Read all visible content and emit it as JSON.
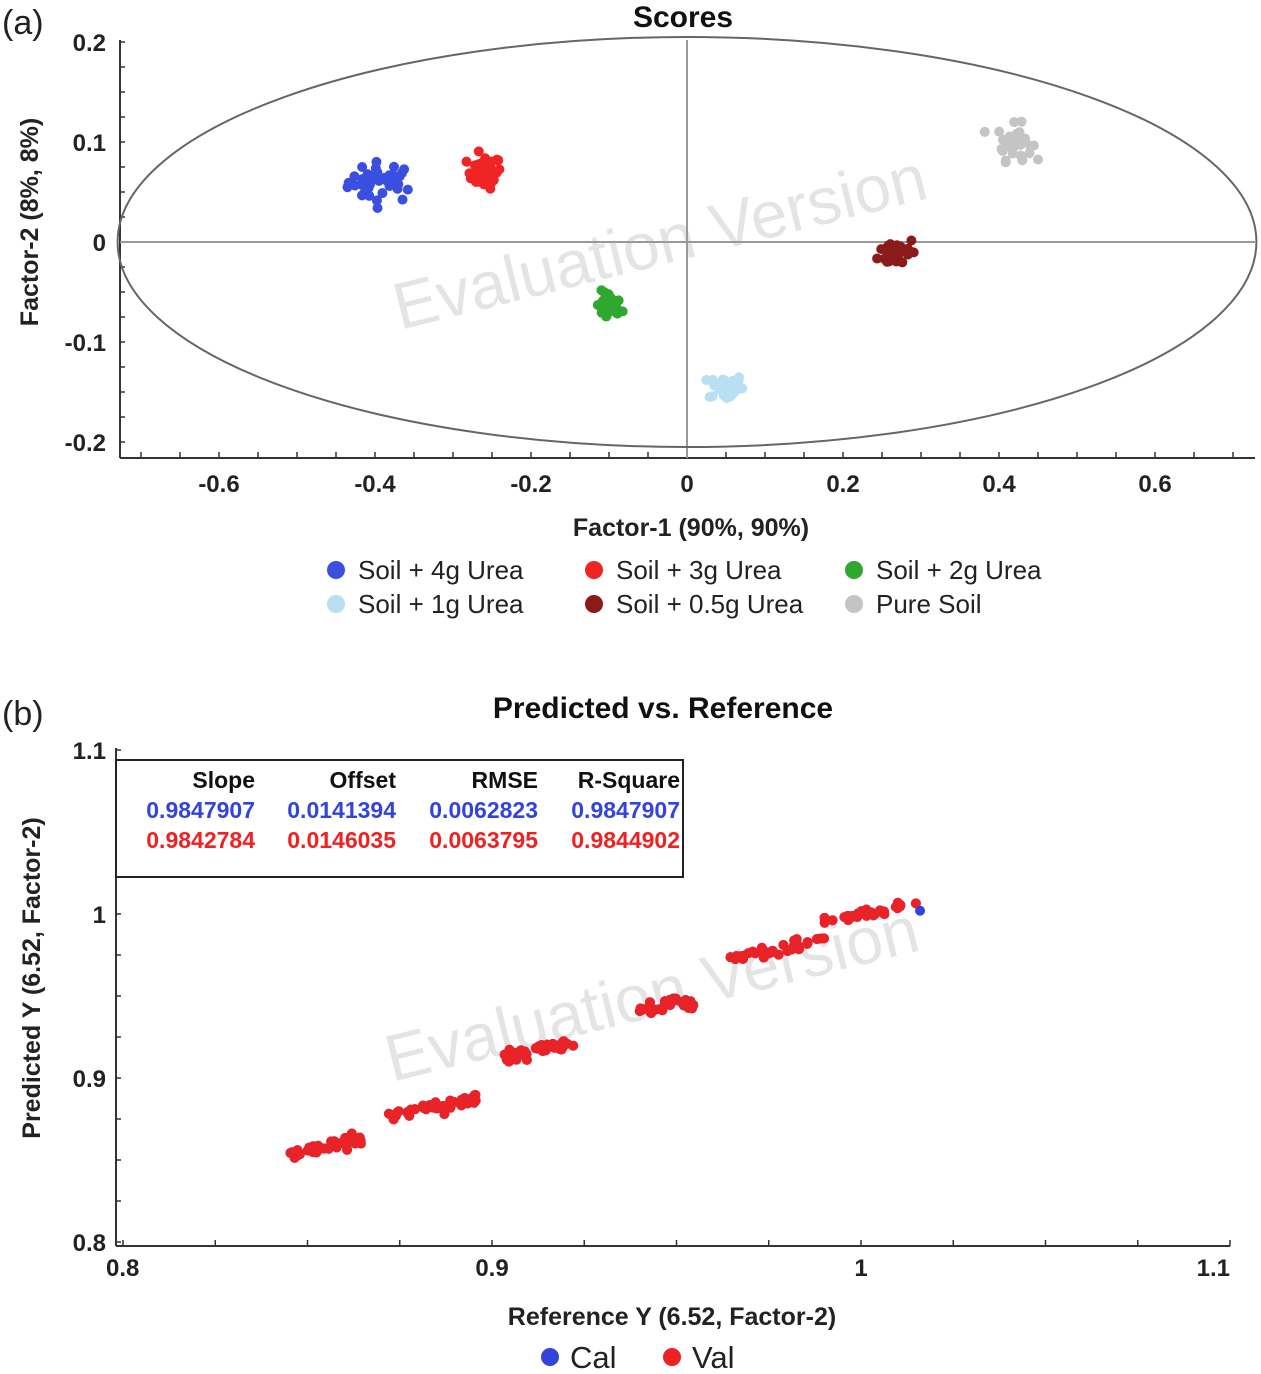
{
  "panel_a": {
    "label": "(a)",
    "watermark": "Evaluation Version"
  },
  "panel_b": {
    "label": "(b)",
    "watermark": "Evaluation Version",
    "stats": {
      "headers": [
        "Slope",
        "Offset",
        "RMSE",
        "R-Square"
      ],
      "rows": [
        {
          "color": "#3344dd",
          "values": [
            "0.9847907",
            "0.0141394",
            "0.0062823",
            "0.9847907"
          ]
        },
        {
          "color": "#ee2222",
          "values": [
            "0.9842784",
            "0.0146035",
            "0.0063795",
            "0.9844902"
          ]
        }
      ]
    }
  },
  "chart_data": [
    {
      "type": "scatter",
      "title": "Scores",
      "xlabel": "Factor-1 (90%, 90%)",
      "ylabel": "Factor-2 (8%, 8%)",
      "xlim": [
        -0.73,
        0.73
      ],
      "ylim": [
        -0.22,
        0.22
      ],
      "xticks": [
        "-0.6",
        "-0.4",
        "-0.2",
        "0",
        "0.2",
        "0.4",
        "0.6"
      ],
      "xtick_values": [
        -0.6,
        -0.4,
        -0.2,
        0,
        0.2,
        0.4,
        0.6
      ],
      "yticks": [
        "0.2",
        "0.1",
        "0",
        "-0.1",
        "-0.2"
      ],
      "ytick_values": [
        0.2,
        0.1,
        0,
        -0.1,
        -0.2
      ],
      "ellipse": {
        "cx": 0,
        "cy": 0,
        "rx": 0.73,
        "ry": 0.205
      },
      "grid": false,
      "legend_position": "bottom",
      "series": [
        {
          "name": "Soil + 4g Urea",
          "color": "#3a4fe0",
          "center": [
            -0.39,
            0.06
          ],
          "spread": [
            0.04,
            0.018
          ],
          "n": 40
        },
        {
          "name": "Soil + 3g Urea",
          "color": "#f02424",
          "center": [
            -0.26,
            0.07
          ],
          "spread": [
            0.02,
            0.015
          ],
          "n": 35
        },
        {
          "name": "Soil + 2g Urea",
          "color": "#2ea82e",
          "center": [
            -0.1,
            -0.065
          ],
          "spread": [
            0.015,
            0.014
          ],
          "n": 30
        },
        {
          "name": "Soil + 1g Urea",
          "color": "#b9dff5",
          "center": [
            0.05,
            -0.145
          ],
          "spread": [
            0.02,
            0.012
          ],
          "n": 35
        },
        {
          "name": "Soil + 0.5g Urea",
          "color": "#8b1a1a",
          "center": [
            0.27,
            -0.01
          ],
          "spread": [
            0.022,
            0.014
          ],
          "n": 35
        },
        {
          "name": "Pure Soil",
          "color": "#c4c4c4",
          "center": [
            0.42,
            0.1
          ],
          "spread": [
            0.02,
            0.016
          ],
          "n": 35
        }
      ]
    },
    {
      "type": "scatter",
      "title": "Predicted vs. Reference",
      "xlabel": "Reference Y (6.52, Factor-2)",
      "ylabel": "Predicted Y (6.52, Factor-2)",
      "xlim": [
        0.8,
        1.1
      ],
      "ylim": [
        0.8,
        1.1
      ],
      "xticks": [
        "0.8",
        "0.9",
        "1",
        "1.1"
      ],
      "xtick_values": [
        0.8,
        0.9,
        1.0,
        1.1
      ],
      "yticks": [
        "1.1",
        "1",
        "0.9",
        "0.8"
      ],
      "ytick_values": [
        1.1,
        1.0,
        0.9,
        0.8
      ],
      "grid": false,
      "legend_position": "bottom",
      "series": [
        {
          "name": "Cal",
          "color": "#3344dd"
        },
        {
          "name": "Val",
          "color": "#ee2222"
        }
      ],
      "clusters": [
        {
          "x_range": [
            0.845,
            0.865
          ],
          "y": 0.858,
          "n": 40
        },
        {
          "x_range": [
            0.872,
            0.897
          ],
          "y": 0.882,
          "n": 40
        },
        {
          "x_range": [
            0.903,
            0.923
          ],
          "y": 0.917,
          "n": 35
        },
        {
          "x_range": [
            0.94,
            0.955
          ],
          "y": 0.944,
          "n": 35
        },
        {
          "x_range": [
            0.963,
            0.99
          ],
          "y": 0.978,
          "n": 35
        },
        {
          "x_range": [
            0.99,
            1.015
          ],
          "y": 1.001,
          "n": 35
        }
      ]
    }
  ]
}
